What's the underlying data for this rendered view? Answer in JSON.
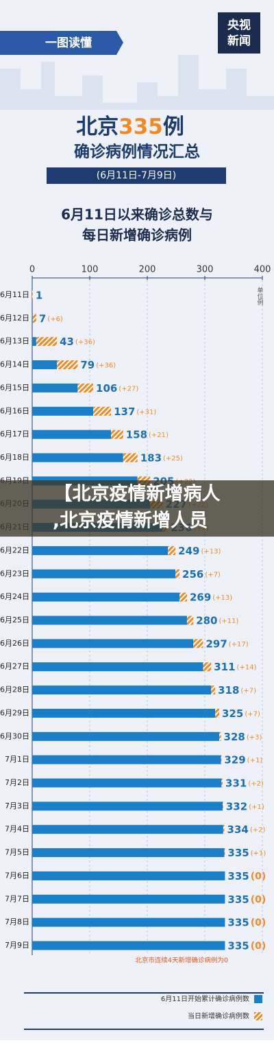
{
  "header": {
    "ribbon": "一图读懂",
    "logo": [
      "央视",
      "新闻"
    ],
    "title": [
      "北京",
      "335",
      "例"
    ],
    "subtitle": "确诊病例情况汇总",
    "period": "(6月11日-7月9日)"
  },
  "banner": {
    "lines": [
      "【北京疫情新增病人",
      ",北京疫情新增人员"
    ]
  },
  "chart_data": {
    "type": "bar",
    "orientation": "horizontal",
    "stacked": true,
    "title": [
      "6月11日以来确诊总数与",
      "每日新增确诊病例"
    ],
    "unit": "单位例",
    "categories": [
      "6月11日",
      "6月12日",
      "6月13日",
      "6月14日",
      "6月15日",
      "6月16日",
      "6月17日",
      "6月18日",
      "6月19日",
      "6月20日",
      "6月21日",
      "6月22日",
      "6月23日",
      "6月24日",
      "6月25日",
      "6月26日",
      "6月27日",
      "6月28日",
      "6月29日",
      "6月30日",
      "7月1日",
      "7月2日",
      "7月3日",
      "7月4日",
      "7月5日",
      "7月6日",
      "7月7日",
      "7月8日",
      "7月9日"
    ],
    "series": [
      {
        "name": "6月11日开始累计确诊病例数",
        "color": "#1a7fc8",
        "values": [
          0,
          1,
          7,
          43,
          79,
          106,
          137,
          158,
          183,
          205,
          227,
          236,
          249,
          256,
          269,
          280,
          297,
          311,
          318,
          325,
          328,
          329,
          331,
          332,
          334,
          335,
          335,
          335,
          335
        ]
      },
      {
        "name": "当日新增确诊病例数",
        "color": "#f08a24",
        "hatched": true,
        "values": [
          1,
          6,
          36,
          36,
          27,
          31,
          21,
          25,
          22,
          22,
          9,
          13,
          7,
          13,
          11,
          17,
          14,
          7,
          7,
          3,
          1,
          2,
          1,
          2,
          1,
          0,
          0,
          0,
          0
        ],
        "value_labels": [
          null,
          "(+6)",
          "(+36)",
          "(+36)",
          "(+27)",
          "(+31)",
          "(+21)",
          "(+25)",
          "(+22)",
          "(+22)",
          "(+9)",
          "(+13)",
          "(+7)",
          "(+13)",
          "(+11)",
          "(+17)",
          "(+14)",
          "(+7)",
          "(+7)",
          "(+3)",
          "(+1)",
          "(+2)",
          "(+1)",
          "(+2)",
          "(+1)",
          "(0)",
          "(0)",
          "(0)",
          "(0)"
        ]
      }
    ],
    "totals": [
      1,
      7,
      43,
      79,
      106,
      137,
      158,
      183,
      205,
      227,
      236,
      249,
      256,
      269,
      280,
      297,
      311,
      318,
      325,
      328,
      329,
      331,
      332,
      334,
      335,
      335,
      335,
      335,
      335
    ],
    "xlim": [
      0,
      400
    ],
    "xticks": [
      0,
      100,
      200,
      300,
      400
    ],
    "grid": true,
    "note": "北京市连续4天新增确诊病例为0"
  }
}
